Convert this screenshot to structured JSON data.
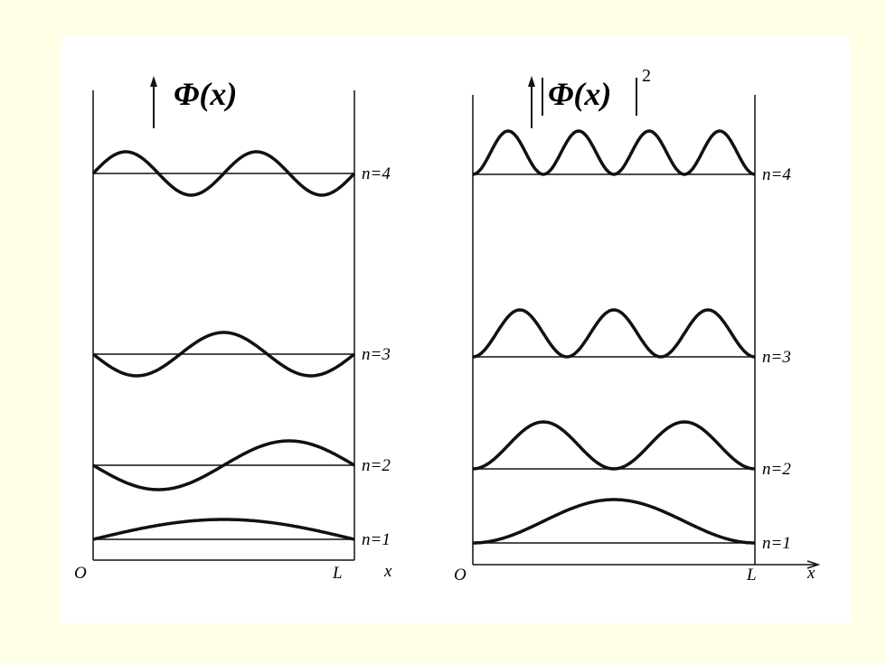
{
  "left": {
    "title": "Φ(x)",
    "levels": [
      "n=4",
      "n=3",
      "n=2",
      "n=1"
    ],
    "origin": "O",
    "end": "L",
    "axis": "x"
  },
  "right": {
    "title": "Φ(x)",
    "exponent": "2",
    "levels": [
      "n=4",
      "n=3",
      "n=2",
      "n=1"
    ],
    "origin": "O",
    "end": "L",
    "axis": "x"
  }
}
